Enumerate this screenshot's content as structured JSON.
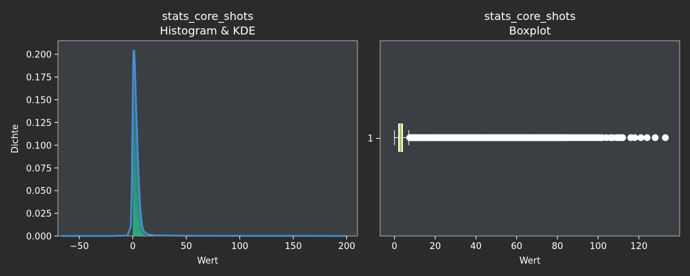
{
  "colors": {
    "figure_bg": "#2b2b2b",
    "axes_bg": "#3b3f44",
    "text": "#ffffff",
    "spine": "#b0b0b0",
    "kde_line": "#4a8fd4",
    "hist_fill_top": "#2e5f8a",
    "hist_fill_bottom": "#2dbd8a",
    "box_fill": "#e4f29a",
    "flier": "#ffffff"
  },
  "chart_data": [
    {
      "type": "histogram+kde",
      "title_line1": "stats_core_shots",
      "title_line2": "Histogram & KDE",
      "xlabel": "Wert",
      "ylabel": "Dichte",
      "xlim": [
        -70,
        210
      ],
      "ylim": [
        0,
        0.215
      ],
      "xticks": [
        -50,
        0,
        50,
        100,
        150,
        200
      ],
      "xtick_labels": [
        "−50",
        "0",
        "50",
        "100",
        "150",
        "200"
      ],
      "yticks": [
        0,
        0.025,
        0.05,
        0.075,
        0.1,
        0.125,
        0.15,
        0.175,
        0.2
      ],
      "ytick_labels": [
        "0.000",
        "0.025",
        "0.050",
        "0.075",
        "0.100",
        "0.125",
        "0.150",
        "0.175",
        "0.200"
      ],
      "histogram": {
        "bin_width": 1,
        "bins": [
          [
            0,
            0.175
          ],
          [
            1,
            0.19
          ],
          [
            2,
            0.17
          ],
          [
            3,
            0.145
          ],
          [
            4,
            0.12
          ],
          [
            5,
            0.085
          ],
          [
            6,
            0.055
          ],
          [
            7,
            0.03
          ],
          [
            8,
            0.015
          ],
          [
            9,
            0.007
          ],
          [
            10,
            0.004
          ],
          [
            11,
            0.002
          ],
          [
            12,
            0.001
          ]
        ]
      },
      "kde": {
        "x": [
          -67,
          -20,
          -5,
          -2,
          -1,
          0,
          0.5,
          1,
          1.5,
          2,
          2.5,
          3,
          4,
          5,
          6,
          7,
          8,
          9,
          10,
          12,
          15,
          20,
          50,
          100,
          150,
          200
        ],
        "y": [
          0,
          0,
          0.0005,
          0.01,
          0.05,
          0.16,
          0.2,
          0.205,
          0.2,
          0.185,
          0.165,
          0.145,
          0.11,
          0.075,
          0.05,
          0.03,
          0.018,
          0.01,
          0.006,
          0.003,
          0.0015,
          0.0008,
          0.0002,
          0.0001,
          5e-05,
          0
        ]
      }
    },
    {
      "type": "boxplot",
      "title_line1": "stats_core_shots",
      "title_line2": "Boxplot",
      "xlabel": "Wert",
      "xlim": [
        -7,
        140
      ],
      "xticks": [
        0,
        20,
        40,
        60,
        80,
        100,
        120
      ],
      "xtick_labels": [
        "0",
        "20",
        "40",
        "60",
        "80",
        "100",
        "120"
      ],
      "yticks_labels": [
        "1"
      ],
      "box": {
        "whisker_low": 0,
        "q1": 2,
        "median": 3,
        "q3": 4,
        "whisker_high": 7
      },
      "fliers_dense_range": [
        7,
        84
      ],
      "fliers_sparse": [
        85,
        86,
        87,
        88,
        89,
        90,
        91,
        92,
        93,
        94,
        95,
        96,
        97,
        98,
        99,
        100,
        101,
        102,
        104,
        106,
        107,
        109,
        110,
        111,
        112,
        116,
        118,
        121,
        124,
        128,
        133
      ]
    }
  ]
}
